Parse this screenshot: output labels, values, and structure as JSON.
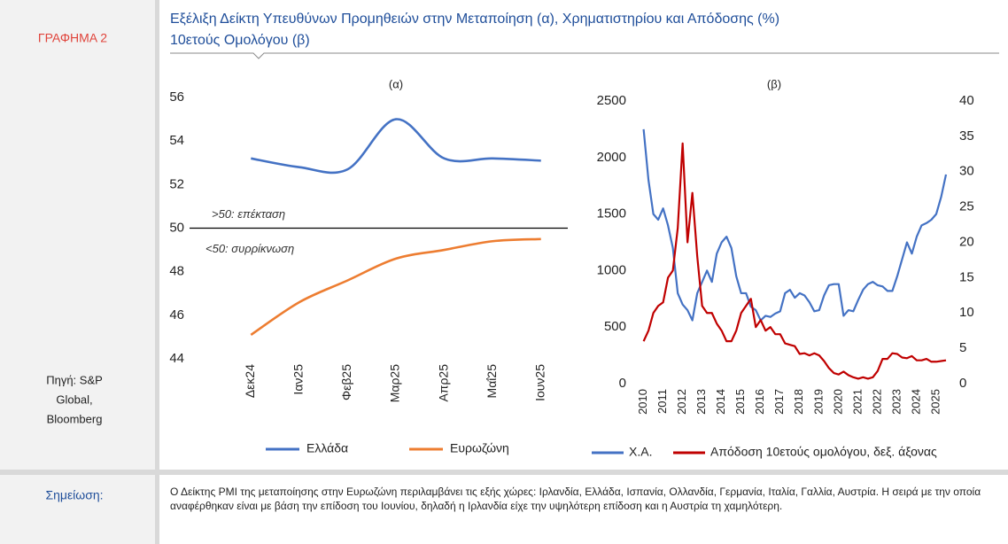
{
  "label": "ΓΡΑΦΗΜΑ 2",
  "title_lines": [
    "Εξέλιξη Δείκτη Υπευθύνων Προμηθειών στην Μεταποίηση (α), Χρηματιστηρίου και Απόδοσης (%)",
    "10ετούς Ομολόγου (β)"
  ],
  "source": [
    "Πηγή: S&P",
    "Global,",
    "Bloomberg"
  ],
  "note_label": "Σημείωση:",
  "note": "Ο Δείκτης PMI της μεταποίησης στην Ευρωζώνη περιλαμβάνει τις εξής χώρες: Ιρλανδία, Ελλάδα, Ισπανία, Ολλανδία, Γερμανία, Ιταλία, Γαλλία, Αυστρία. Η σειρά με την οποία αναφέρθηκαν είναι με βάση την επίδοση του Ιουνίου, δηλαδή η Ιρλανδία είχε την υψηλότερη επίδοση και η Αυστρία τη χαμηλότερη.",
  "chart_data": [
    {
      "type": "line",
      "title": "(α)",
      "categories": [
        "Δεκ24",
        "Ιαν25",
        "Φεβ25",
        "Μαρ25",
        "Απρ25",
        "Μαΐ25",
        "Ιουν25"
      ],
      "series": [
        {
          "name": "Ελλάδα",
          "color": "#4472c4",
          "values": [
            53.2,
            52.8,
            52.7,
            55.0,
            53.2,
            53.2,
            53.1
          ]
        },
        {
          "name": "Ευρωζώνη",
          "color": "#ed7d31",
          "values": [
            45.1,
            46.6,
            47.6,
            48.6,
            49.0,
            49.4,
            49.5
          ]
        }
      ],
      "ylim": [
        44,
        56
      ],
      "yticks": [
        44,
        46,
        48,
        50,
        52,
        54,
        56
      ],
      "reference_line": 50,
      "annotations": [
        ">50: επέκταση",
        "<50: συρρίκνωση"
      ],
      "smooth": true
    },
    {
      "type": "line",
      "title": "(β)",
      "x": [
        2010,
        2010.25,
        2010.5,
        2010.75,
        2011,
        2011.25,
        2011.5,
        2011.75,
        2012,
        2012.25,
        2012.5,
        2012.75,
        2013,
        2013.25,
        2013.5,
        2013.75,
        2014,
        2014.25,
        2014.5,
        2014.75,
        2015,
        2015.25,
        2015.5,
        2015.75,
        2016,
        2016.25,
        2016.5,
        2016.75,
        2017,
        2017.25,
        2017.5,
        2017.75,
        2018,
        2018.25,
        2018.5,
        2018.75,
        2019,
        2019.25,
        2019.5,
        2019.75,
        2020,
        2020.25,
        2020.5,
        2020.75,
        2021,
        2021.25,
        2021.5,
        2021.75,
        2022,
        2022.25,
        2022.5,
        2022.75,
        2023,
        2023.25,
        2023.5,
        2023.75,
        2024,
        2024.25,
        2024.5,
        2024.75,
        2025,
        2025.25,
        2025.5
      ],
      "series": [
        {
          "name": "Χ.Α.",
          "color": "#4472c4",
          "axis": "y",
          "values": [
            2250,
            1800,
            1500,
            1450,
            1550,
            1400,
            1200,
            800,
            700,
            650,
            560,
            800,
            900,
            1000,
            900,
            1150,
            1250,
            1300,
            1200,
            950,
            800,
            800,
            680,
            650,
            560,
            600,
            590,
            620,
            640,
            800,
            830,
            760,
            800,
            780,
            720,
            640,
            650,
            780,
            870,
            880,
            880,
            600,
            650,
            640,
            740,
            830,
            880,
            900,
            870,
            860,
            820,
            820,
            950,
            1100,
            1250,
            1150,
            1300,
            1400,
            1420,
            1450,
            1500,
            1650,
            1850
          ]
        },
        {
          "name": "Απόδοση 10ετούς ομολόγου, δεξ. άξονας",
          "color": "#c00000",
          "axis": "y2",
          "values": [
            6,
            7.5,
            10,
            11,
            11.5,
            15,
            16,
            22,
            34,
            20,
            27,
            18,
            11,
            10,
            10,
            8.5,
            7.5,
            6,
            6,
            7.5,
            10,
            11,
            12,
            8,
            9,
            7.5,
            8,
            7,
            7,
            5.7,
            5.5,
            5.3,
            4.2,
            4.3,
            4.0,
            4.3,
            4.0,
            3.2,
            2.2,
            1.5,
            1.3,
            1.7,
            1.2,
            0.9,
            0.7,
            0.9,
            0.7,
            0.9,
            1.8,
            3.5,
            3.5,
            4.3,
            4.2,
            3.7,
            3.6,
            3.9,
            3.3,
            3.3,
            3.5,
            3.1,
            3.1,
            3.2,
            3.3
          ]
        }
      ],
      "xlim": [
        2009.7,
        2025.5
      ],
      "xticks": [
        2010,
        2011,
        2012,
        2013,
        2014,
        2015,
        2016,
        2017,
        2018,
        2019,
        2020,
        2021,
        2022,
        2023,
        2024,
        2025
      ],
      "ylim": [
        0,
        2500
      ],
      "yticks": [
        0,
        500,
        1000,
        1500,
        2000,
        2500
      ],
      "y2lim": [
        0,
        40
      ],
      "y2ticks": [
        0,
        5,
        10,
        15,
        20,
        25,
        30,
        35,
        40
      ]
    }
  ]
}
